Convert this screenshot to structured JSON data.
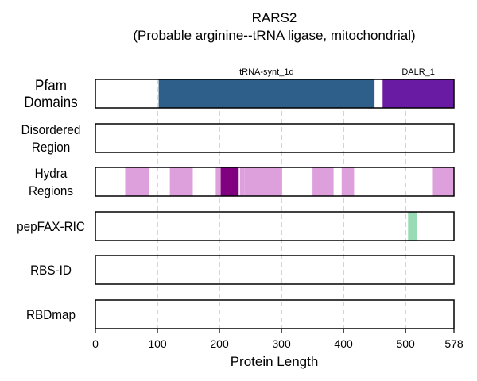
{
  "chart_data": {
    "type": "bar",
    "title": "RARS2",
    "subtitle": "(Probable arginine--tRNA ligase, mitochondrial)",
    "xlabel": "Protein Length",
    "xlim": [
      0,
      578
    ],
    "xticks": [
      0,
      100,
      200,
      300,
      400,
      500,
      578
    ],
    "grid_x": [
      100,
      200,
      300,
      400,
      500
    ],
    "tracks": [
      {
        "label_lines": [
          "Pfam",
          "Domains"
        ],
        "segments": [
          {
            "start": 102,
            "end": 450,
            "color": "#2d5f8a",
            "label": "tRNA-synt_1d"
          },
          {
            "start": 463,
            "end": 578,
            "color": "#6a1ba3",
            "label": "DALR_1"
          }
        ]
      },
      {
        "label_lines": [
          "Disordered",
          "Region"
        ],
        "segments": []
      },
      {
        "label_lines": [
          "Hydra",
          "Regions"
        ],
        "segments": [
          {
            "start": 48,
            "end": 86,
            "color": "#dda0dd"
          },
          {
            "start": 120,
            "end": 157,
            "color": "#dda0dd"
          },
          {
            "start": 194,
            "end": 202,
            "color": "#dda0dd"
          },
          {
            "start": 202,
            "end": 231,
            "color": "#800080"
          },
          {
            "start": 233,
            "end": 240,
            "color": "#dda0dd"
          },
          {
            "start": 240,
            "end": 301,
            "color": "#dda0dd"
          },
          {
            "start": 350,
            "end": 384,
            "color": "#dda0dd"
          },
          {
            "start": 397,
            "end": 417,
            "color": "#dda0dd"
          },
          {
            "start": 544,
            "end": 578,
            "color": "#dda0dd"
          }
        ]
      },
      {
        "label_lines": [
          "pepFAX-RIC"
        ],
        "segments": [
          {
            "start": 504,
            "end": 518,
            "color": "#98dbb5"
          }
        ]
      },
      {
        "label_lines": [
          "RBS-ID"
        ],
        "segments": []
      },
      {
        "label_lines": [
          "RBDmap"
        ],
        "segments": []
      }
    ]
  }
}
